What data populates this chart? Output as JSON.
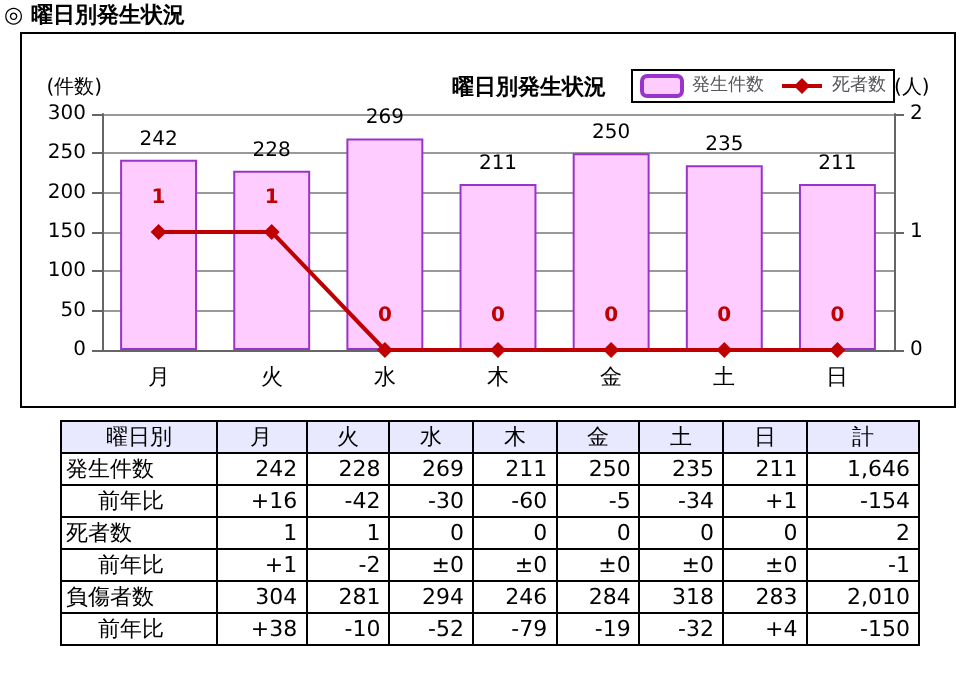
{
  "chart_data": [
    {
      "type": "bar",
      "title": "◎ 曜日別発生状況",
      "subtitle": "曜日別発生状況",
      "ylabel": "(件数)",
      "y2label": "(人)",
      "categories": [
        "月",
        "火",
        "水",
        "木",
        "金",
        "土",
        "日"
      ],
      "series": [
        {
          "name": "発生件数",
          "type": "bar",
          "color": "#ffccff",
          "values": [
            242,
            228,
            269,
            211,
            250,
            235,
            211
          ]
        },
        {
          "name": "死者数",
          "type": "line",
          "axis": "y2",
          "color": "#c00000",
          "marker": "diamond",
          "values": [
            1,
            1,
            0,
            0,
            0,
            0,
            0
          ]
        }
      ],
      "ylim": [
        0,
        300
      ],
      "yticks": [
        0,
        50,
        100,
        150,
        200,
        250,
        300
      ],
      "y2lim": [
        0,
        2
      ],
      "y2ticks": [
        0,
        1,
        2
      ],
      "grid": "y",
      "legend": "top right",
      "data_labels": true
    },
    {
      "type": "other",
      "categories": [
        "曜日別",
        "月",
        "火",
        "水",
        "木",
        "金",
        "土",
        "日",
        "計"
      ],
      "y_categories": [
        "発生件数",
        "前年比",
        "死者数",
        "前年比",
        "負傷者数",
        "前年比"
      ],
      "cell_labels": [
        [
          "242",
          "228",
          "269",
          "211",
          "250",
          "235",
          "211",
          "1,646"
        ],
        [
          "+16",
          "-42",
          "-30",
          "-60",
          "-5",
          "-34",
          "+1",
          "-154"
        ],
        [
          "1",
          "1",
          "0",
          "0",
          "0",
          "0",
          "0",
          "2"
        ],
        [
          "+1",
          "-2",
          "±0",
          "±0",
          "±0",
          "±0",
          "±0",
          "-1"
        ],
        [
          "304",
          "281",
          "294",
          "246",
          "284",
          "318",
          "283",
          "2,010"
        ],
        [
          "+38",
          "-10",
          "-52",
          "-79",
          "-19",
          "-32",
          "+4",
          "-150"
        ]
      ]
    }
  ]
}
